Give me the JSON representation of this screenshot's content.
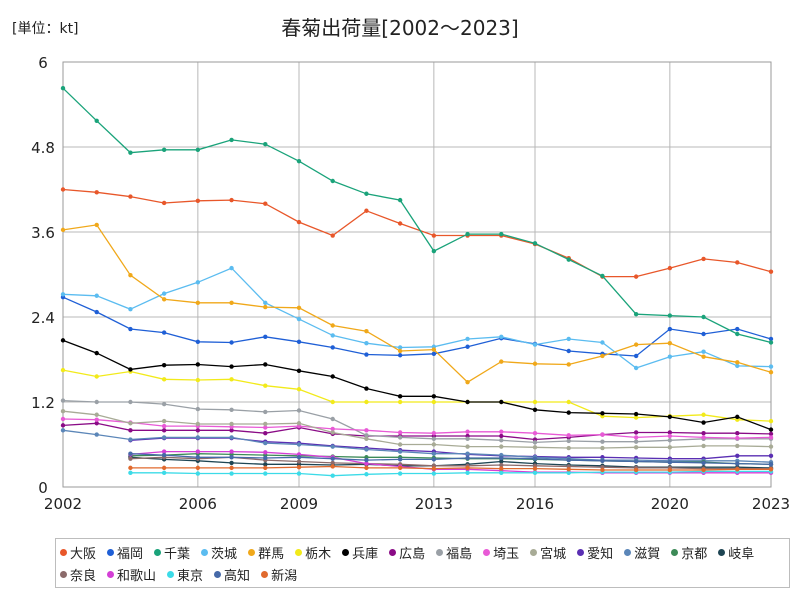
{
  "chart_data": {
    "type": "line",
    "title": "春菊出荷量[2002～2023]",
    "unit_label": "[単位：kt]",
    "ylim": [
      0,
      6
    ],
    "y_ticks": [
      "0",
      "1.2",
      "2.4",
      "3.6",
      "4.8",
      "6"
    ],
    "xlim": [
      2002,
      2023
    ],
    "x_ticks": [
      "2002",
      "2006",
      "2009",
      "2013",
      "2016",
      "2020",
      "2023"
    ],
    "grid": true,
    "legend_position": "bottom",
    "x": [
      2002,
      2003,
      2004,
      2005,
      2006,
      2007,
      2008,
      2009,
      2010,
      2011,
      2012,
      2013,
      2014,
      2015,
      2016,
      2017,
      2018,
      2019,
      2020,
      2021,
      2022,
      2023
    ],
    "series": [
      {
        "name": "大阪",
        "color": "#e8572a",
        "values": [
          4.2,
          4.16,
          4.1,
          4.01,
          4.04,
          4.05,
          4.0,
          3.74,
          3.55,
          3.9,
          3.72,
          3.55,
          3.55,
          3.55,
          3.43,
          3.23,
          2.97,
          2.97,
          3.09,
          3.22,
          3.17,
          3.04
        ]
      },
      {
        "name": "福岡",
        "color": "#1f5fd6",
        "values": [
          2.68,
          2.47,
          2.23,
          2.18,
          2.05,
          2.04,
          2.12,
          2.05,
          1.97,
          1.87,
          1.86,
          1.88,
          1.98,
          2.1,
          2.02,
          1.92,
          1.88,
          1.85,
          2.23,
          2.16,
          2.23,
          2.09
        ]
      },
      {
        "name": "千葉",
        "color": "#1aa37a",
        "values": [
          5.63,
          5.17,
          4.72,
          4.76,
          4.76,
          4.9,
          4.84,
          4.6,
          4.32,
          4.14,
          4.05,
          3.33,
          3.57,
          3.57,
          3.44,
          3.21,
          2.98,
          2.44,
          2.42,
          2.4,
          2.16,
          2.04
        ]
      },
      {
        "name": "茨城",
        "color": "#5bbcf0",
        "values": [
          2.72,
          2.7,
          2.51,
          2.73,
          2.89,
          3.09,
          2.6,
          2.37,
          2.14,
          2.03,
          1.97,
          1.98,
          2.09,
          2.12,
          2.01,
          2.09,
          2.04,
          1.68,
          1.84,
          1.91,
          1.71,
          1.7
        ]
      },
      {
        "name": "群馬",
        "color": "#f0a81a",
        "values": [
          3.63,
          3.7,
          2.99,
          2.65,
          2.6,
          2.6,
          2.54,
          2.53,
          2.28,
          2.2,
          1.92,
          1.94,
          1.48,
          1.77,
          1.74,
          1.73,
          1.85,
          2.01,
          2.03,
          1.84,
          1.76,
          1.62
        ]
      },
      {
        "name": "栃木",
        "color": "#f2ea1a",
        "values": [
          1.65,
          1.56,
          1.63,
          1.52,
          1.51,
          1.52,
          1.43,
          1.38,
          1.2,
          1.2,
          1.2,
          1.2,
          1.2,
          1.2,
          1.2,
          1.2,
          1.0,
          0.98,
          1.0,
          1.02,
          0.95,
          0.93
        ]
      },
      {
        "name": "兵庫",
        "color": "#000000",
        "values": [
          2.07,
          1.89,
          1.66,
          1.72,
          1.73,
          1.7,
          1.73,
          1.64,
          1.56,
          1.39,
          1.28,
          1.28,
          1.2,
          1.2,
          1.09,
          1.05,
          1.04,
          1.03,
          0.99,
          0.91,
          0.99,
          0.81
        ]
      },
      {
        "name": "広島",
        "color": "#8a0b86",
        "values": [
          0.87,
          0.9,
          0.8,
          0.8,
          0.8,
          0.8,
          0.76,
          0.84,
          0.75,
          0.72,
          0.72,
          0.72,
          0.72,
          0.72,
          0.67,
          0.7,
          0.74,
          0.77,
          0.77,
          0.76,
          0.76,
          0.75
        ]
      },
      {
        "name": "福島",
        "color": "#9aa0a6",
        "values": [
          1.22,
          1.2,
          1.2,
          1.17,
          1.1,
          1.09,
          1.06,
          1.08,
          0.96,
          0.73,
          0.7,
          0.68,
          0.68,
          0.66,
          0.63,
          0.65,
          0.64,
          0.64,
          0.66,
          0.68,
          0.68,
          0.68
        ]
      },
      {
        "name": "埼玉",
        "color": "#e85ad6",
        "values": [
          0.96,
          0.95,
          0.91,
          0.86,
          0.86,
          0.85,
          0.84,
          0.86,
          0.82,
          0.8,
          0.77,
          0.76,
          0.78,
          0.78,
          0.76,
          0.73,
          0.74,
          0.7,
          0.72,
          0.7,
          0.69,
          0.7
        ]
      },
      {
        "name": "宮城",
        "color": "#a8ab96",
        "values": [
          1.07,
          1.02,
          0.9,
          0.93,
          0.89,
          0.89,
          0.89,
          0.9,
          0.77,
          0.68,
          0.6,
          0.6,
          0.57,
          0.57,
          0.56,
          0.55,
          0.55,
          0.56,
          0.56,
          0.58,
          0.58,
          0.57
        ]
      },
      {
        "name": "愛知",
        "color": "#5a2fb3",
        "values": [
          null,
          null,
          0.66,
          0.69,
          0.69,
          0.69,
          0.64,
          0.62,
          0.58,
          0.55,
          0.52,
          0.5,
          0.46,
          0.44,
          0.43,
          0.42,
          0.42,
          0.41,
          0.4,
          0.4,
          0.44,
          0.44
        ]
      },
      {
        "name": "滋賀",
        "color": "#5b86b8",
        "values": [
          0.8,
          0.74,
          0.67,
          0.7,
          0.7,
          0.7,
          0.62,
          0.6,
          0.57,
          0.53,
          0.5,
          0.47,
          0.47,
          0.45,
          0.42,
          0.4,
          0.38,
          0.38,
          0.37,
          0.37,
          0.37,
          0.35
        ]
      },
      {
        "name": "京都",
        "color": "#3c8a57",
        "values": [
          null,
          null,
          0.44,
          0.45,
          0.47,
          0.46,
          0.45,
          0.44,
          0.43,
          0.42,
          0.42,
          0.41,
          0.4,
          0.4,
          0.39,
          0.38,
          0.37,
          0.36,
          0.35,
          0.35,
          0.33,
          0.32
        ]
      },
      {
        "name": "岐阜",
        "color": "#1e4553",
        "values": [
          null,
          null,
          0.42,
          0.39,
          0.37,
          0.34,
          0.32,
          0.32,
          0.31,
          0.32,
          0.3,
          0.3,
          0.32,
          0.36,
          0.33,
          0.31,
          0.3,
          0.28,
          0.28,
          0.28,
          0.28,
          0.27
        ]
      },
      {
        "name": "奈良",
        "color": "#8c6b6b",
        "values": [
          null,
          null,
          0.4,
          0.42,
          0.4,
          0.42,
          0.38,
          0.36,
          0.34,
          0.33,
          0.32,
          0.3,
          0.3,
          0.31,
          0.3,
          0.29,
          0.28,
          0.27,
          0.27,
          0.26,
          0.26,
          0.26
        ]
      },
      {
        "name": "和歌山",
        "color": "#d43fd6",
        "values": [
          null,
          null,
          0.46,
          0.5,
          0.5,
          0.5,
          0.49,
          0.46,
          0.42,
          0.33,
          0.29,
          0.25,
          0.25,
          0.23,
          0.21,
          0.21,
          0.2,
          0.2,
          0.2,
          0.2,
          0.2,
          0.2
        ]
      },
      {
        "name": "東京",
        "color": "#3cdbe8",
        "values": [
          null,
          null,
          0.2,
          0.2,
          0.19,
          0.19,
          0.19,
          0.19,
          0.16,
          0.18,
          0.19,
          0.19,
          0.2,
          0.2,
          0.2,
          0.2,
          0.21,
          0.21,
          0.21,
          0.22,
          0.22,
          0.22
        ]
      },
      {
        "name": "高知",
        "color": "#4669a8",
        "values": [
          null,
          null,
          0.47,
          0.45,
          0.42,
          0.42,
          0.41,
          0.42,
          0.4,
          0.38,
          0.39,
          0.39,
          0.41,
          0.41,
          0.4,
          0.38,
          0.37,
          0.36,
          0.35,
          0.34,
          0.33,
          0.32
        ]
      },
      {
        "name": "新潟",
        "color": "#e06a2e",
        "values": [
          null,
          null,
          0.27,
          0.27,
          0.27,
          0.27,
          0.27,
          0.28,
          0.29,
          0.27,
          0.27,
          0.26,
          0.27,
          0.26,
          0.26,
          0.25,
          0.24,
          0.24,
          0.24,
          0.24,
          0.25,
          0.25
        ]
      }
    ]
  }
}
